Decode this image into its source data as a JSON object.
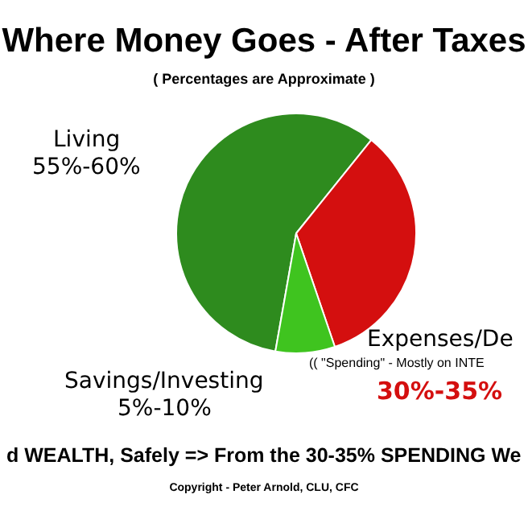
{
  "chart_data": {
    "type": "pie",
    "title": "Where Money Goes - After Taxes",
    "subtitle": "( Percentages are Approximate )",
    "categories": [
      "Living",
      "Expenses/De",
      "Savings/Investing"
    ],
    "values": [
      58,
      34,
      8
    ],
    "colors": [
      "#2e8b1e",
      "#d40f0f",
      "#3fc41f"
    ],
    "legend": false,
    "annotations": [
      "55%-60%",
      "(( \"Spending\" - Mostly on INTE",
      "30%-35%",
      "5%-10%",
      "d WEALTH, Safely => From the 30-35% SPENDING We",
      "Copyright - Peter Arnold, CLU, CFC"
    ]
  }
}
